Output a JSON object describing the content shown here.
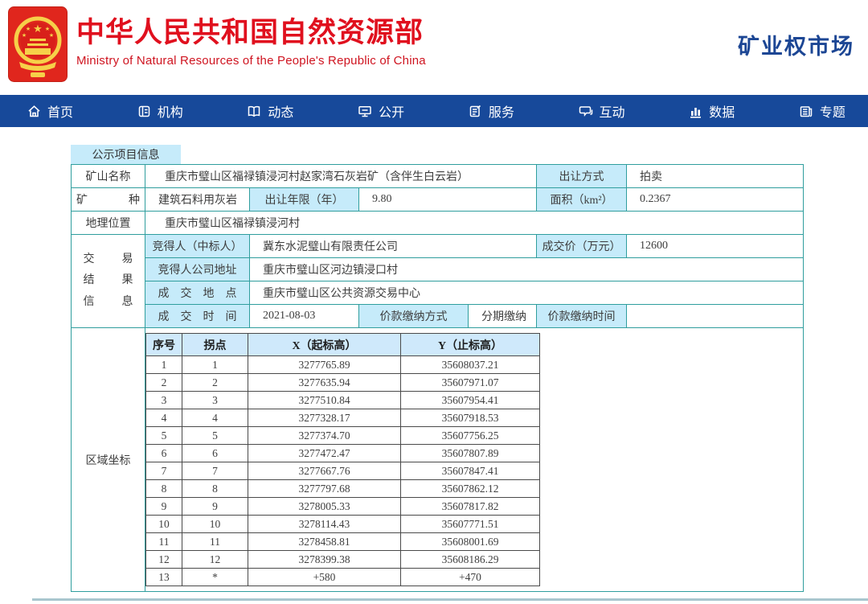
{
  "header": {
    "org_name_cn": "中华人民共和国自然资源部",
    "org_name_en": "Ministry of Natural Resources of the People's Republic of China",
    "site_title": "矿业权市场",
    "brand_red": "#e0101e",
    "brand_navy": "#1c4694"
  },
  "nav": {
    "bg_color": "#17499a",
    "items": [
      {
        "label": "首页",
        "icon": "home-icon"
      },
      {
        "label": "机构",
        "icon": "organization-icon"
      },
      {
        "label": "动态",
        "icon": "news-book-icon"
      },
      {
        "label": "公开",
        "icon": "disclosure-monitor-icon"
      },
      {
        "label": "服务",
        "icon": "service-clipboard-icon"
      },
      {
        "label": "互动",
        "icon": "interaction-chat-icon"
      },
      {
        "label": "数据",
        "icon": "data-chart-icon"
      },
      {
        "label": "专题",
        "icon": "topics-newspaper-icon"
      }
    ]
  },
  "tab": {
    "label": "公示项目信息"
  },
  "project": {
    "mine_name_label": "矿山名称",
    "mine_name": "重庆市璧山区福禄镇浸河村赵家湾石灰岩矿（含伴生白云岩）",
    "transfer_mode_label": "出让方式",
    "transfer_mode": "拍卖",
    "mineral_label": "矿 种",
    "mineral": "建筑石料用灰岩",
    "transfer_years_label": "出让年限（年）",
    "transfer_years": "9.80",
    "area_label": "面积（km²）",
    "area": "0.2367",
    "location_label": "地理位置",
    "location": "重庆市璧山区福禄镇浸河村"
  },
  "transaction": {
    "section_label": "交 易\n结 果\n信 息",
    "winner_label": "竞得人（中标人）",
    "winner": "冀东水泥璧山有限责任公司",
    "price_label": "成交价（万元）",
    "price": "12600",
    "winner_address_label": "竞得人公司地址",
    "winner_address": "重庆市璧山区河边镇浸口村",
    "deal_place_label": "成　交　地　点",
    "deal_place": "重庆市璧山区公共资源交易中心",
    "deal_time_label": "成　交　时　间",
    "deal_time": "2021-08-03",
    "payment_method_label": "价款缴纳方式",
    "payment_method": "分期缴纳",
    "payment_time_label": "价款缴纳时间",
    "payment_time": ""
  },
  "coordinates": {
    "section_label": "区域坐标",
    "headers": [
      "序号",
      "拐点",
      "X（起标高）",
      "Y（止标高）"
    ],
    "rows": [
      [
        "1",
        "1",
        "3277765.89",
        "35608037.21"
      ],
      [
        "2",
        "2",
        "3277635.94",
        "35607971.07"
      ],
      [
        "3",
        "3",
        "3277510.84",
        "35607954.41"
      ],
      [
        "4",
        "4",
        "3277328.17",
        "35607918.53"
      ],
      [
        "5",
        "5",
        "3277374.70",
        "35607756.25"
      ],
      [
        "6",
        "6",
        "3277472.47",
        "35607807.89"
      ],
      [
        "7",
        "7",
        "3277667.76",
        "35607847.41"
      ],
      [
        "8",
        "8",
        "3277797.68",
        "35607862.12"
      ],
      [
        "9",
        "9",
        "3278005.33",
        "35607817.82"
      ],
      [
        "10",
        "10",
        "3278114.43",
        "35607771.51"
      ],
      [
        "11",
        "11",
        "3278458.81",
        "35608001.69"
      ],
      [
        "12",
        "12",
        "3278399.38",
        "35608186.29"
      ],
      [
        "13",
        "*",
        "+580",
        "+470"
      ]
    ]
  },
  "colors": {
    "table_border_teal": "#2f9e9e",
    "label_cell_blue": "#c6ebfa",
    "coord_header_blue": "#cfe9fb",
    "coord_border_gray": "#4a4a4a",
    "bottom_rule": "#a9c6ce"
  }
}
